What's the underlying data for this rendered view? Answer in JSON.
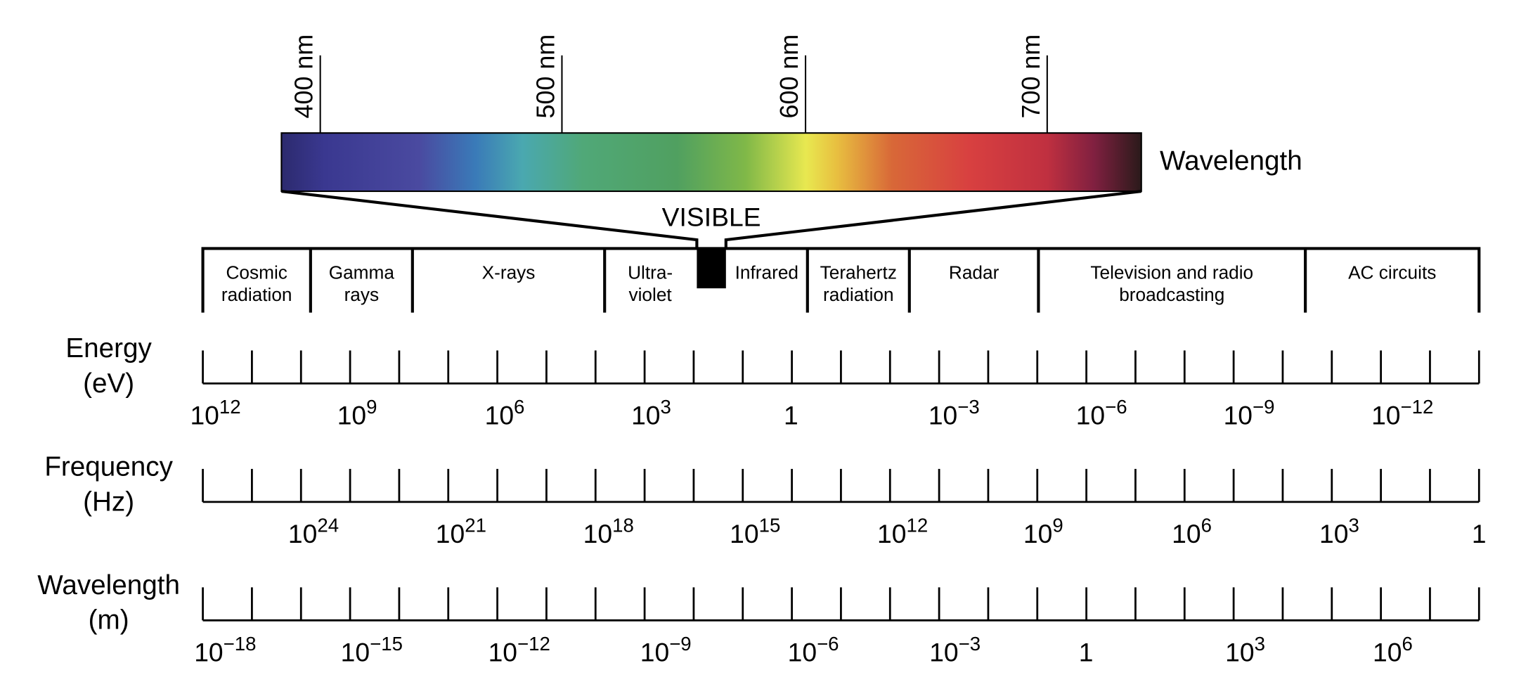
{
  "visible": {
    "wavelength_ticks": [
      "400 nm",
      "500 nm",
      "600 nm",
      "700 nm"
    ],
    "bar_label": "Wavelength",
    "label": "VISIBLE"
  },
  "bands": [
    {
      "lines": [
        "Cosmic",
        "radiation"
      ]
    },
    {
      "lines": [
        "Gamma",
        "rays"
      ]
    },
    {
      "lines": [
        "X-rays"
      ]
    },
    {
      "lines": [
        "Ultra-",
        "violet"
      ]
    },
    {
      "lines": [
        "Infrared"
      ]
    },
    {
      "lines": [
        "Terahertz",
        "radiation"
      ]
    },
    {
      "lines": [
        "Radar"
      ]
    },
    {
      "lines": [
        "Television and radio",
        "broadcasting"
      ]
    },
    {
      "lines": [
        "AC circuits"
      ]
    }
  ],
  "scales": [
    {
      "name": "Energy",
      "unit": "(eV)",
      "ticks": [
        {
          "base": "10",
          "exp": "12"
        },
        {
          "base": "10",
          "exp": "9"
        },
        {
          "base": "10",
          "exp": "6"
        },
        {
          "base": "10",
          "exp": "3"
        },
        {
          "base": "1"
        },
        {
          "base": "10",
          "exp": "−3"
        },
        {
          "base": "10",
          "exp": "−6"
        },
        {
          "base": "10",
          "exp": "−9"
        },
        {
          "base": "10",
          "exp": "−12"
        }
      ]
    },
    {
      "name": "Frequency",
      "unit": "(Hz)",
      "ticks": [
        {
          "base": "10",
          "exp": "24"
        },
        {
          "base": "10",
          "exp": "21"
        },
        {
          "base": "10",
          "exp": "18"
        },
        {
          "base": "10",
          "exp": "15"
        },
        {
          "base": "10",
          "exp": "12"
        },
        {
          "base": "10",
          "exp": "9"
        },
        {
          "base": "10",
          "exp": "6"
        },
        {
          "base": "10",
          "exp": "3"
        },
        {
          "base": "1"
        }
      ]
    },
    {
      "name": "Wavelength",
      "unit": "(m)",
      "ticks": [
        {
          "base": "10",
          "exp": "−18"
        },
        {
          "base": "10",
          "exp": "−15"
        },
        {
          "base": "10",
          "exp": "−12"
        },
        {
          "base": "10",
          "exp": "−9"
        },
        {
          "base": "10",
          "exp": "−6"
        },
        {
          "base": "10",
          "exp": "−3"
        },
        {
          "base": "1"
        },
        {
          "base": "10",
          "exp": "3"
        },
        {
          "base": "10",
          "exp": "6"
        }
      ]
    }
  ]
}
